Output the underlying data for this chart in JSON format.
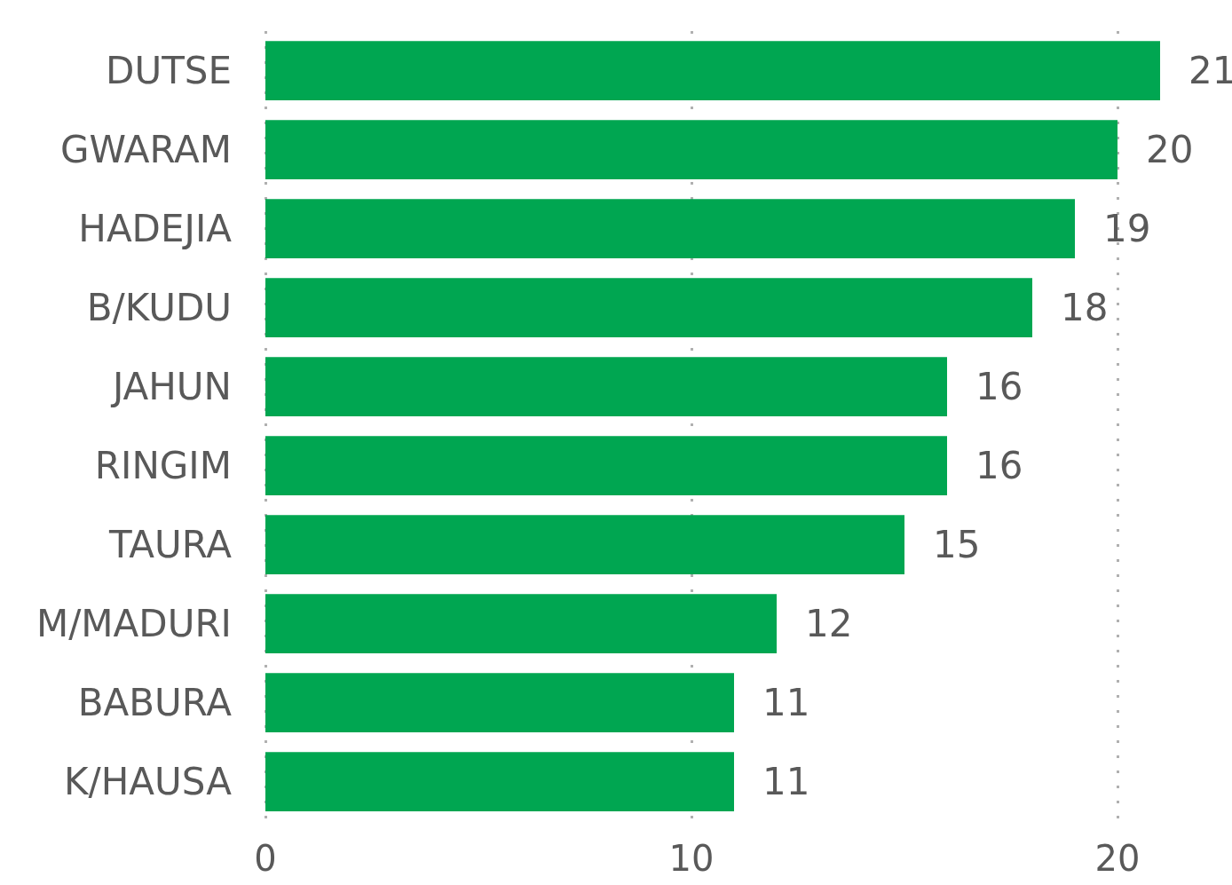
{
  "chart_data": {
    "type": "bar",
    "orientation": "horizontal",
    "categories": [
      "DUTSE",
      "GWARAM",
      "HADEJIA",
      "B/KUDU",
      "JAHUN",
      "RINGIM",
      "TAURA",
      "M/MADURI",
      "BABURA",
      "K/HAUSA"
    ],
    "values": [
      21,
      20,
      19,
      18,
      16,
      16,
      15,
      12,
      11,
      11
    ],
    "color": "#00a651",
    "data_labels": true,
    "xlim": [
      0,
      21
    ],
    "xticks": [
      0,
      10,
      20
    ],
    "grid": "x"
  }
}
